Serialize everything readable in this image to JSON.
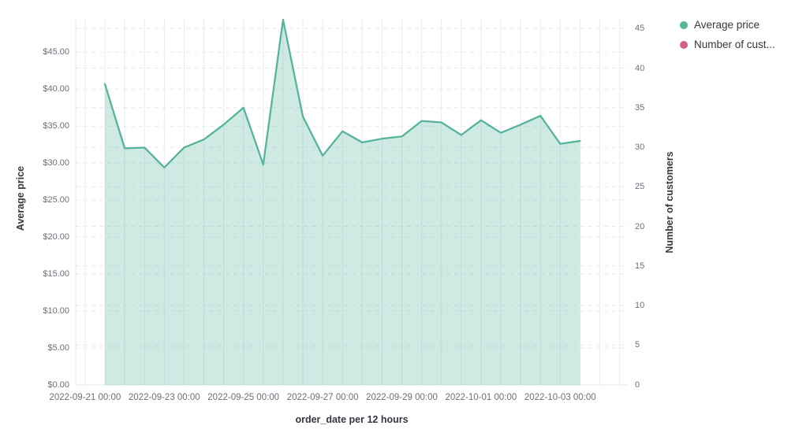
{
  "page": {
    "background": "#ffffff"
  },
  "legend": {
    "position": "top-right",
    "items": [
      {
        "label": "Average price",
        "color": "#54b399"
      },
      {
        "label": "Number of cust...",
        "color": "#d36086"
      }
    ]
  },
  "axes": {
    "left": {
      "title": "Average price",
      "tick_labels": [
        "$0.00",
        "$5.00",
        "$10.00",
        "$15.00",
        "$20.00",
        "$25.00",
        "$30.00",
        "$35.00",
        "$40.00",
        "$45.00"
      ],
      "tick_values": [
        0,
        5,
        10,
        15,
        20,
        25,
        30,
        35,
        40,
        45
      ]
    },
    "right": {
      "title": "Number of customers",
      "tick_labels": [
        "0",
        "5",
        "10",
        "15",
        "20",
        "25",
        "30",
        "35",
        "40",
        "45"
      ],
      "tick_values": [
        0,
        5,
        10,
        15,
        20,
        25,
        30,
        35,
        40,
        45
      ]
    },
    "bottom": {
      "title": "order_date per 12 hours",
      "tick_labels": [
        "2022-09-21 00:00",
        "2022-09-23 00:00",
        "2022-09-25 00:00",
        "2022-09-27 00:00",
        "2022-09-29 00:00",
        "2022-10-01 00:00",
        "2022-10-03 00:00"
      ]
    }
  },
  "chart_data": {
    "type": "area",
    "title": "",
    "xlabel": "order_date per 12 hours",
    "ylabel": "Average price",
    "ylabel_right": "Number of customers",
    "x_interval": "12 hours",
    "grid": true,
    "legend_position": "right",
    "ylim_left": [
      0,
      49.5
    ],
    "ylim_right": [
      0,
      46.5
    ],
    "x": [
      "2022-09-21 12:00",
      "2022-09-22 00:00",
      "2022-09-22 12:00",
      "2022-09-23 00:00",
      "2022-09-23 12:00",
      "2022-09-24 00:00",
      "2022-09-24 12:00",
      "2022-09-25 00:00",
      "2022-09-25 12:00",
      "2022-09-26 00:00",
      "2022-09-26 12:00",
      "2022-09-27 00:00",
      "2022-09-27 12:00",
      "2022-09-28 00:00",
      "2022-09-28 12:00",
      "2022-09-29 00:00",
      "2022-09-29 12:00",
      "2022-09-30 00:00",
      "2022-09-30 12:00",
      "2022-10-01 00:00",
      "2022-10-01 12:00",
      "2022-10-02 00:00",
      "2022-10-02 12:00",
      "2022-10-03 00:00",
      "2022-10-03 12:00"
    ],
    "series": [
      {
        "name": "Average price",
        "axis": "left",
        "color": "#54b399",
        "fill_opacity": 0.28,
        "values": [
          40.7,
          32.0,
          32.1,
          29.4,
          32.1,
          33.2,
          35.2,
          37.5,
          29.8,
          49.4,
          36.3,
          31.0,
          34.3,
          32.8,
          33.3,
          33.6,
          35.7,
          35.5,
          33.8,
          35.8,
          34.1,
          35.2,
          36.4,
          32.6,
          33.0
        ]
      },
      {
        "name": "Number of customers",
        "axis": "right",
        "color": "#d36086",
        "values": []
      }
    ]
  },
  "colors": {
    "grid_vertical": "#e9ebf0",
    "grid_dashed": "#e6e9ef",
    "boundary": "#e2e5eb",
    "axis_text": "#69707d",
    "title_text": "#343741"
  }
}
